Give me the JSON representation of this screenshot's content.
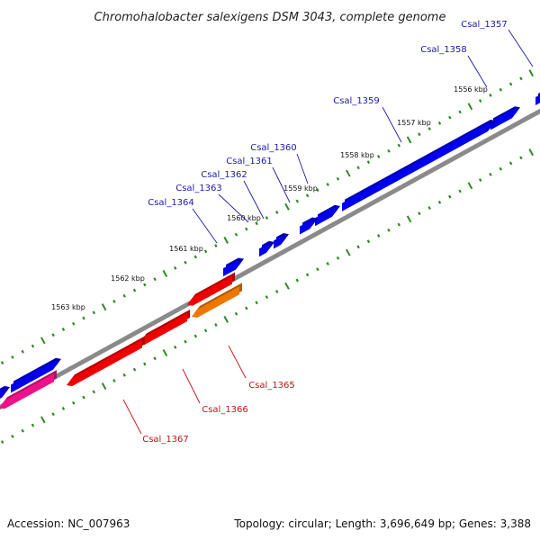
{
  "title": "Chromohalobacter salexigens DSM 3043, complete genome",
  "footer": {
    "accession": "Accession: NC_007963",
    "summary": "Topology: circular; Length: 3,696,649 bp; Genes: 3,388"
  },
  "colors": {
    "backbone": "#8a8a8a",
    "tick": "#2e8b22",
    "forward_gene": "#0000ee",
    "forward_label": "#1a1aa8",
    "reverse_label": "#c41111"
  },
  "scale_labels": [
    "1556 kbp",
    "1557 kbp",
    "1558 kbp",
    "1559 kbp",
    "1560 kbp",
    "1561 kbp",
    "1562 kbp",
    "1563 kbp"
  ],
  "genes": [
    {
      "label": "Csal_1357",
      "strand": "+",
      "color": "#0000ee"
    },
    {
      "label": "Csal_1358",
      "strand": "+",
      "color": "#0000ee"
    },
    {
      "label": "Csal_1359",
      "strand": "+",
      "color": "#0000ee"
    },
    {
      "label": "Csal_1360",
      "strand": "+",
      "color": "#0000ee"
    },
    {
      "label": "Csal_1361",
      "strand": "+",
      "color": "#0000ee"
    },
    {
      "label": "Csal_1362",
      "strand": "+",
      "color": "#0000ee"
    },
    {
      "label": "Csal_1363",
      "strand": "+",
      "color": "#0000ee"
    },
    {
      "label": "Csal_1364",
      "strand": "+",
      "color": "#0000ee"
    },
    {
      "label": "Csal_1365",
      "strand": "-",
      "color": "#ee7700"
    },
    {
      "label": "Csal_1366",
      "strand": "-",
      "color": "#ee0000"
    },
    {
      "label": "Csal_1367",
      "strand": "-",
      "color": "#ee0000"
    }
  ],
  "unlabeled_features": [
    {
      "strand": "+",
      "color": "#0000ee"
    },
    {
      "strand": "+",
      "color": "#0000ee"
    },
    {
      "strand": "+",
      "color": "#0000ee"
    },
    {
      "strand": "-",
      "color": "#ee1188"
    },
    {
      "strand": "-",
      "color": "#ee1188"
    }
  ]
}
